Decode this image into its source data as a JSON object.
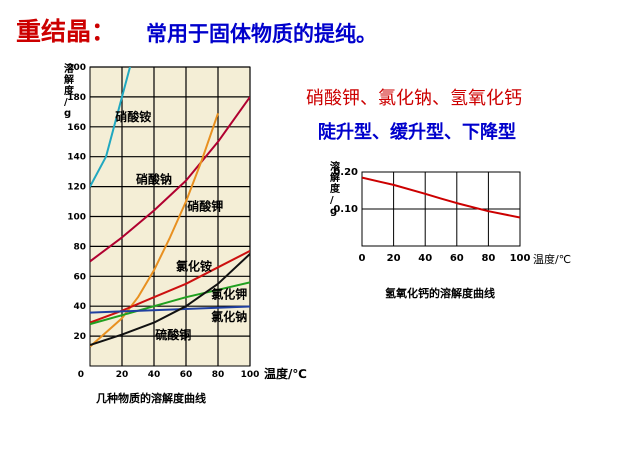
{
  "title": {
    "key": "重结晶：",
    "desc": "常用于固体物质的提纯。"
  },
  "substances_line": "硝酸钾、氯化钠、氢氧化钙",
  "types_line": "陡升型、缓升型、下降型",
  "colors": {
    "title_red": "#cc0000",
    "title_blue": "#0000cc"
  },
  "chart_data": [
    {
      "type": "line",
      "title": "",
      "caption": "几种物质的溶解度曲线",
      "ylabel": "溶解度/g",
      "xlabel": "温度/℃",
      "xlim": [
        0,
        100
      ],
      "ylim": [
        0,
        200
      ],
      "xticks": [
        "0",
        "20",
        "40",
        "60",
        "80",
        "100"
      ],
      "yticks": [
        "20",
        "40",
        "60",
        "80",
        "100",
        "120",
        "140",
        "160",
        "180",
        "200"
      ],
      "grid": true,
      "series": [
        {
          "name": "硝酸铵",
          "color": "#20a8c0",
          "x": [
            0,
            10,
            20,
            25,
            30
          ],
          "y": [
            120,
            140,
            180,
            200,
            220
          ],
          "label_at": [
            27,
            164
          ]
        },
        {
          "name": "硝酸钠",
          "color": "#b00030",
          "x": [
            0,
            20,
            40,
            60,
            80,
            100
          ],
          "y": [
            70,
            86,
            104,
            124,
            150,
            180
          ],
          "label_at": [
            40,
            122
          ]
        },
        {
          "name": "硝酸钾",
          "color": "#e89020",
          "x": [
            0,
            20,
            30,
            40,
            50,
            60,
            70,
            80
          ],
          "y": [
            13,
            32,
            46,
            64,
            86,
            110,
            138,
            169
          ],
          "label_at": [
            72,
            104
          ]
        },
        {
          "name": "氯化铵",
          "color": "#cc1010",
          "x": [
            0,
            20,
            40,
            60,
            80,
            100
          ],
          "y": [
            29,
            37,
            46,
            55,
            66,
            77
          ],
          "label_at": [
            65,
            64
          ]
        },
        {
          "name": "氯化钾",
          "color": "#20a020",
          "x": [
            0,
            20,
            40,
            60,
            80,
            100
          ],
          "y": [
            28,
            34,
            40,
            46,
            51,
            56
          ],
          "label_at": [
            87,
            45
          ]
        },
        {
          "name": "氯化钠",
          "color": "#2040a0",
          "x": [
            0,
            100
          ],
          "y": [
            35.7,
            39.8
          ],
          "label_at": [
            87,
            30
          ]
        },
        {
          "name": "硫酸铜",
          "color": "#111111",
          "x": [
            0,
            20,
            40,
            60,
            80,
            100
          ],
          "y": [
            14,
            21,
            29,
            40,
            55,
            75
          ],
          "label_at": [
            52,
            18
          ]
        }
      ]
    },
    {
      "type": "line",
      "title": "",
      "caption": "氢氧化钙的溶解度曲线",
      "ylabel": "溶解度/g",
      "xlabel": "温度/℃",
      "xlim": [
        0,
        100
      ],
      "ylim": [
        0,
        0.2
      ],
      "xticks": [
        "0",
        "20",
        "40",
        "60",
        "80",
        "100"
      ],
      "yticks": [
        "0.10",
        "0.20"
      ],
      "grid": true,
      "series": [
        {
          "color": "#cc0000",
          "x": [
            0,
            20,
            40,
            50,
            60,
            80,
            100
          ],
          "y": [
            0.185,
            0.165,
            0.141,
            0.128,
            0.116,
            0.094,
            0.077
          ]
        }
      ]
    }
  ]
}
